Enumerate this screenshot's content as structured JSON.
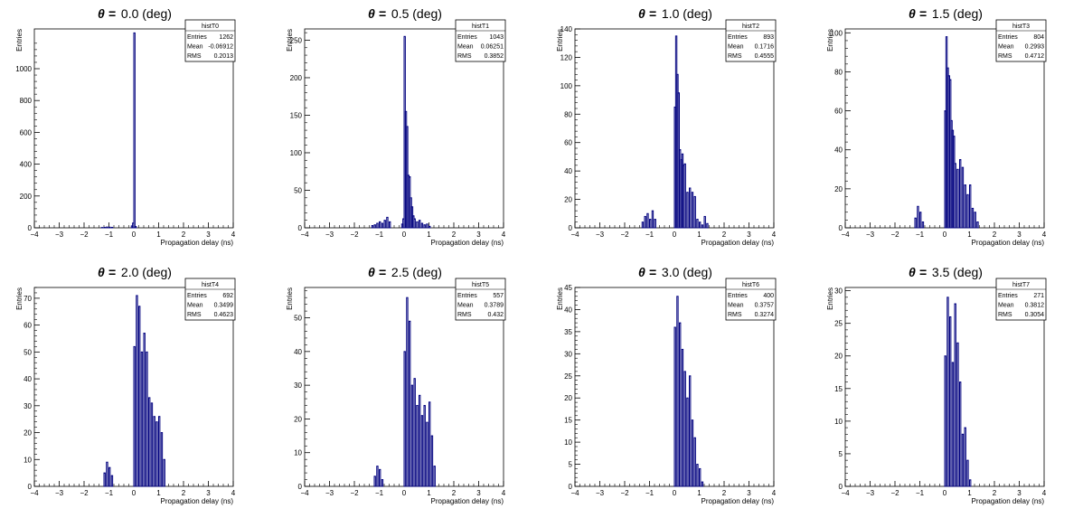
{
  "chart_data": [
    {
      "type": "bar",
      "title": "0.0 (deg)",
      "title_symbol": "θ =",
      "xlabel": "Propagation delay (ns)",
      "ylabel": "Entries",
      "xlim": [
        -4,
        4
      ],
      "ylim": [
        0,
        1250
      ],
      "xticks": [
        "−4",
        "−3",
        "−2",
        "−1",
        "0",
        "1",
        "2",
        "3",
        "4"
      ],
      "yticks": [
        "0",
        "200",
        "400",
        "600",
        "800",
        "1000"
      ],
      "ytick_values": [
        0,
        200,
        400,
        600,
        800,
        1000
      ],
      "stats": {
        "name": "histT0",
        "labels": [
          "Entries",
          "Mean",
          "RMS"
        ],
        "values": [
          "1262",
          "-0.06912",
          "0.2013"
        ]
      },
      "bins": [
        [
          -1.3,
          2
        ],
        [
          -1.2,
          3
        ],
        [
          -1.1,
          5
        ],
        [
          -1.0,
          4
        ],
        [
          -0.9,
          3
        ],
        [
          -0.1,
          12
        ],
        [
          -0.05,
          30
        ],
        [
          0.0,
          1225
        ],
        [
          0.05,
          8
        ]
      ],
      "color": "#00007f"
    },
    {
      "type": "bar",
      "title": "0.5 (deg)",
      "title_symbol": "θ =",
      "xlabel": "Propagation delay (ns)",
      "ylabel": "Entries",
      "xlim": [
        -4,
        4
      ],
      "ylim": [
        0,
        265
      ],
      "xticks": [
        "−4",
        "−3",
        "−2",
        "−1",
        "0",
        "1",
        "2",
        "3",
        "4"
      ],
      "yticks": [
        "0",
        "50",
        "100",
        "150",
        "200",
        "250"
      ],
      "ytick_values": [
        0,
        50,
        100,
        150,
        200,
        250
      ],
      "stats": {
        "name": "histT1",
        "labels": [
          "Entries",
          "Mean",
          "RMS"
        ],
        "values": [
          "1043",
          "0.06251",
          "0.3852"
        ]
      },
      "bins": [
        [
          -1.3,
          3
        ],
        [
          -1.2,
          4
        ],
        [
          -1.1,
          6
        ],
        [
          -1.0,
          8
        ],
        [
          -0.9,
          6
        ],
        [
          -0.8,
          10
        ],
        [
          -0.7,
          14
        ],
        [
          -0.6,
          8
        ],
        [
          -0.1,
          5
        ],
        [
          -0.05,
          12
        ],
        [
          0.0,
          255
        ],
        [
          0.05,
          155
        ],
        [
          0.1,
          135
        ],
        [
          0.15,
          70
        ],
        [
          0.2,
          68
        ],
        [
          0.25,
          40
        ],
        [
          0.3,
          28
        ],
        [
          0.35,
          16
        ],
        [
          0.4,
          12
        ],
        [
          0.5,
          8
        ],
        [
          0.6,
          10
        ],
        [
          0.7,
          6
        ],
        [
          0.8,
          4
        ],
        [
          0.9,
          5
        ],
        [
          1.0,
          2
        ]
      ],
      "color": "#00007f"
    },
    {
      "type": "bar",
      "title": "1.0 (deg)",
      "title_symbol": "θ =",
      "xlabel": "Propagation delay (ns)",
      "ylabel": "Entries",
      "xlim": [
        -4,
        4
      ],
      "ylim": [
        0,
        140
      ],
      "xticks": [
        "−4",
        "−3",
        "−2",
        "−1",
        "0",
        "1",
        "2",
        "3",
        "4"
      ],
      "yticks": [
        "0",
        "20",
        "40",
        "60",
        "80",
        "100",
        "120",
        "140"
      ],
      "ytick_values": [
        0,
        20,
        40,
        60,
        80,
        100,
        120,
        140
      ],
      "stats": {
        "name": "histT2",
        "labels": [
          "Entries",
          "Mean",
          "RMS"
        ],
        "values": [
          "893",
          "0.1716",
          "0.4555"
        ]
      },
      "bins": [
        [
          -1.3,
          4
        ],
        [
          -1.2,
          8
        ],
        [
          -1.1,
          10
        ],
        [
          -1.0,
          6
        ],
        [
          -0.9,
          12
        ],
        [
          -0.8,
          6
        ],
        [
          0.0,
          85
        ],
        [
          0.05,
          135
        ],
        [
          0.1,
          108
        ],
        [
          0.15,
          95
        ],
        [
          0.2,
          55
        ],
        [
          0.25,
          48
        ],
        [
          0.3,
          52
        ],
        [
          0.35,
          44
        ],
        [
          0.4,
          45
        ],
        [
          0.5,
          25
        ],
        [
          0.6,
          28
        ],
        [
          0.7,
          25
        ],
        [
          0.8,
          22
        ],
        [
          0.9,
          6
        ],
        [
          1.0,
          4
        ],
        [
          1.1,
          2
        ],
        [
          1.2,
          8
        ],
        [
          1.3,
          3
        ]
      ],
      "color": "#00007f"
    },
    {
      "type": "bar",
      "title": "1.5 (deg)",
      "title_symbol": "θ =",
      "xlabel": "Propagation delay (ns)",
      "ylabel": "Entries",
      "xlim": [
        -4,
        4
      ],
      "ylim": [
        0,
        102
      ],
      "xticks": [
        "−4",
        "−3",
        "−2",
        "−1",
        "0",
        "1",
        "2",
        "3",
        "4"
      ],
      "yticks": [
        "0",
        "20",
        "40",
        "60",
        "80",
        "100"
      ],
      "ytick_values": [
        0,
        20,
        40,
        60,
        80,
        100
      ],
      "stats": {
        "name": "histT3",
        "labels": [
          "Entries",
          "Mean",
          "RMS"
        ],
        "values": [
          "804",
          "0.2993",
          "0.4712"
        ]
      },
      "bins": [
        [
          -1.2,
          5
        ],
        [
          -1.1,
          11
        ],
        [
          -1.0,
          8
        ],
        [
          -0.9,
          3
        ],
        [
          0.0,
          60
        ],
        [
          0.05,
          98
        ],
        [
          0.1,
          82
        ],
        [
          0.15,
          78
        ],
        [
          0.2,
          76
        ],
        [
          0.25,
          55
        ],
        [
          0.3,
          50
        ],
        [
          0.35,
          47
        ],
        [
          0.4,
          33
        ],
        [
          0.5,
          30
        ],
        [
          0.6,
          35
        ],
        [
          0.7,
          31
        ],
        [
          0.8,
          22
        ],
        [
          0.9,
          17
        ],
        [
          1.0,
          22
        ],
        [
          1.1,
          10
        ],
        [
          1.2,
          8
        ],
        [
          1.3,
          3
        ]
      ],
      "color": "#00007f"
    },
    {
      "type": "bar",
      "title": "2.0 (deg)",
      "title_symbol": "θ =",
      "xlabel": "Propagation delay (ns)",
      "ylabel": "Entries",
      "xlim": [
        -4,
        4
      ],
      "ylim": [
        0,
        74
      ],
      "xticks": [
        "−4",
        "−3",
        "−2",
        "−1",
        "0",
        "1",
        "2",
        "3",
        "4"
      ],
      "yticks": [
        "0",
        "10",
        "20",
        "30",
        "40",
        "50",
        "60",
        "70"
      ],
      "ytick_values": [
        0,
        10,
        20,
        30,
        40,
        50,
        60,
        70
      ],
      "stats": {
        "name": "histT4",
        "labels": [
          "Entries",
          "Mean",
          "RMS"
        ],
        "values": [
          "692",
          "0.3499",
          "0.4623"
        ]
      },
      "bins": [
        [
          -1.2,
          5
        ],
        [
          -1.1,
          9
        ],
        [
          -1.0,
          7
        ],
        [
          -0.9,
          4
        ],
        [
          0.0,
          52
        ],
        [
          0.1,
          71
        ],
        [
          0.2,
          67
        ],
        [
          0.3,
          50
        ],
        [
          0.4,
          57
        ],
        [
          0.5,
          50
        ],
        [
          0.6,
          33
        ],
        [
          0.7,
          31
        ],
        [
          0.8,
          26
        ],
        [
          0.9,
          24
        ],
        [
          1.0,
          26
        ],
        [
          1.1,
          20
        ],
        [
          1.2,
          10
        ]
      ],
      "color": "#00007f"
    },
    {
      "type": "bar",
      "title": "2.5 (deg)",
      "title_symbol": "θ =",
      "xlabel": "Propagation delay (ns)",
      "ylabel": "Entries",
      "xlim": [
        -4,
        4
      ],
      "ylim": [
        0,
        59
      ],
      "xticks": [
        "−4",
        "−3",
        "−2",
        "−1",
        "0",
        "1",
        "2",
        "3",
        "4"
      ],
      "yticks": [
        "0",
        "10",
        "20",
        "30",
        "40",
        "50"
      ],
      "ytick_values": [
        0,
        10,
        20,
        30,
        40,
        50
      ],
      "stats": {
        "name": "histT5",
        "labels": [
          "Entries",
          "Mean",
          "RMS"
        ],
        "values": [
          "557",
          "0.3789",
          "0.432"
        ]
      },
      "bins": [
        [
          -1.2,
          3
        ],
        [
          -1.1,
          6
        ],
        [
          -1.0,
          5
        ],
        [
          -0.9,
          2
        ],
        [
          0.0,
          40
        ],
        [
          0.1,
          56
        ],
        [
          0.2,
          49
        ],
        [
          0.3,
          30
        ],
        [
          0.4,
          32
        ],
        [
          0.5,
          24
        ],
        [
          0.6,
          27
        ],
        [
          0.7,
          21
        ],
        [
          0.8,
          24
        ],
        [
          0.9,
          19
        ],
        [
          1.0,
          25
        ],
        [
          1.1,
          15
        ],
        [
          1.2,
          6
        ]
      ],
      "color": "#00007f"
    },
    {
      "type": "bar",
      "title": "3.0 (deg)",
      "title_symbol": "θ =",
      "xlabel": "Propagation delay (ns)",
      "ylabel": "Entries",
      "xlim": [
        -4,
        4
      ],
      "ylim": [
        0,
        45
      ],
      "xticks": [
        "−4",
        "−3",
        "−2",
        "−1",
        "0",
        "1",
        "2",
        "3",
        "4"
      ],
      "yticks": [
        "0",
        "5",
        "10",
        "15",
        "20",
        "25",
        "30",
        "35",
        "40",
        "45"
      ],
      "ytick_values": [
        0,
        5,
        10,
        15,
        20,
        25,
        30,
        35,
        40,
        45
      ],
      "stats": {
        "name": "histT6",
        "labels": [
          "Entries",
          "Mean",
          "RMS"
        ],
        "values": [
          "400",
          "0.3757",
          "0.3274"
        ]
      },
      "bins": [
        [
          0.0,
          36
        ],
        [
          0.1,
          43
        ],
        [
          0.2,
          37
        ],
        [
          0.3,
          31
        ],
        [
          0.4,
          26
        ],
        [
          0.5,
          20
        ],
        [
          0.6,
          25
        ],
        [
          0.7,
          15
        ],
        [
          0.8,
          11
        ],
        [
          0.9,
          5
        ],
        [
          1.0,
          4
        ],
        [
          1.1,
          1
        ]
      ],
      "color": "#00007f"
    },
    {
      "type": "bar",
      "title": "3.5 (deg)",
      "title_symbol": "θ =",
      "xlabel": "Propagation delay (ns)",
      "ylabel": "Entries",
      "xlim": [
        -4,
        4
      ],
      "ylim": [
        0,
        30.5
      ],
      "xticks": [
        "−4",
        "−3",
        "−2",
        "−1",
        "0",
        "1",
        "2",
        "3",
        "4"
      ],
      "yticks": [
        "0",
        "5",
        "10",
        "15",
        "20",
        "25",
        "30"
      ],
      "ytick_values": [
        0,
        5,
        10,
        15,
        20,
        25,
        30
      ],
      "stats": {
        "name": "histT7",
        "labels": [
          "Entries",
          "Mean",
          "RMS"
        ],
        "values": [
          "271",
          "0.3812",
          "0.3054"
        ]
      },
      "bins": [
        [
          0.0,
          20
        ],
        [
          0.1,
          29
        ],
        [
          0.2,
          26
        ],
        [
          0.3,
          19
        ],
        [
          0.4,
          28
        ],
        [
          0.5,
          22
        ],
        [
          0.6,
          16
        ],
        [
          0.7,
          8
        ],
        [
          0.8,
          9
        ],
        [
          0.9,
          4
        ],
        [
          1.0,
          1
        ]
      ],
      "color": "#00007f"
    }
  ]
}
